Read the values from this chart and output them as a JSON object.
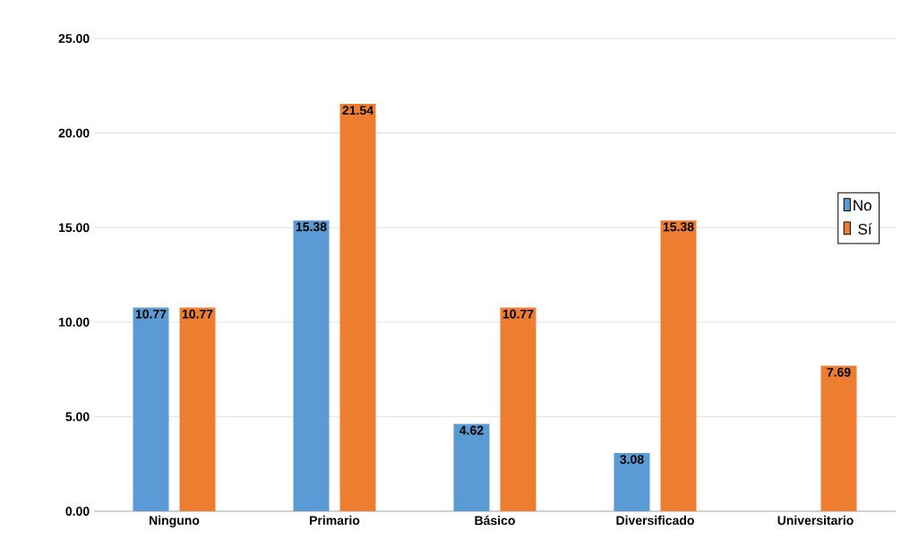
{
  "chart_data": {
    "type": "bar",
    "categories": [
      "Ninguno",
      "Primario",
      "Básico",
      "Diversificado",
      "Universitario"
    ],
    "series": [
      {
        "name": "No",
        "color": "#5b9bd5",
        "values": [
          10.77,
          15.38,
          4.62,
          3.08,
          null
        ],
        "value_labels": [
          "10.77",
          "15.38",
          "4.62",
          "3.08",
          null
        ]
      },
      {
        "name": "Sí",
        "color": "#ed7d31",
        "values": [
          10.77,
          21.54,
          10.77,
          15.38,
          7.69
        ],
        "value_labels": [
          "10.77",
          "21.54",
          "10.77",
          "15.38",
          "7.69"
        ]
      }
    ],
    "ylim": [
      0,
      25
    ],
    "yticks": [
      {
        "value": 0,
        "label": "0.00"
      },
      {
        "value": 5,
        "label": "5.00"
      },
      {
        "value": 10,
        "label": "10.00"
      },
      {
        "value": 15,
        "label": "15.00"
      },
      {
        "value": 20,
        "label": "20.00"
      },
      {
        "value": 25,
        "label": "25.00"
      }
    ],
    "grid": "y",
    "legend": "right"
  }
}
